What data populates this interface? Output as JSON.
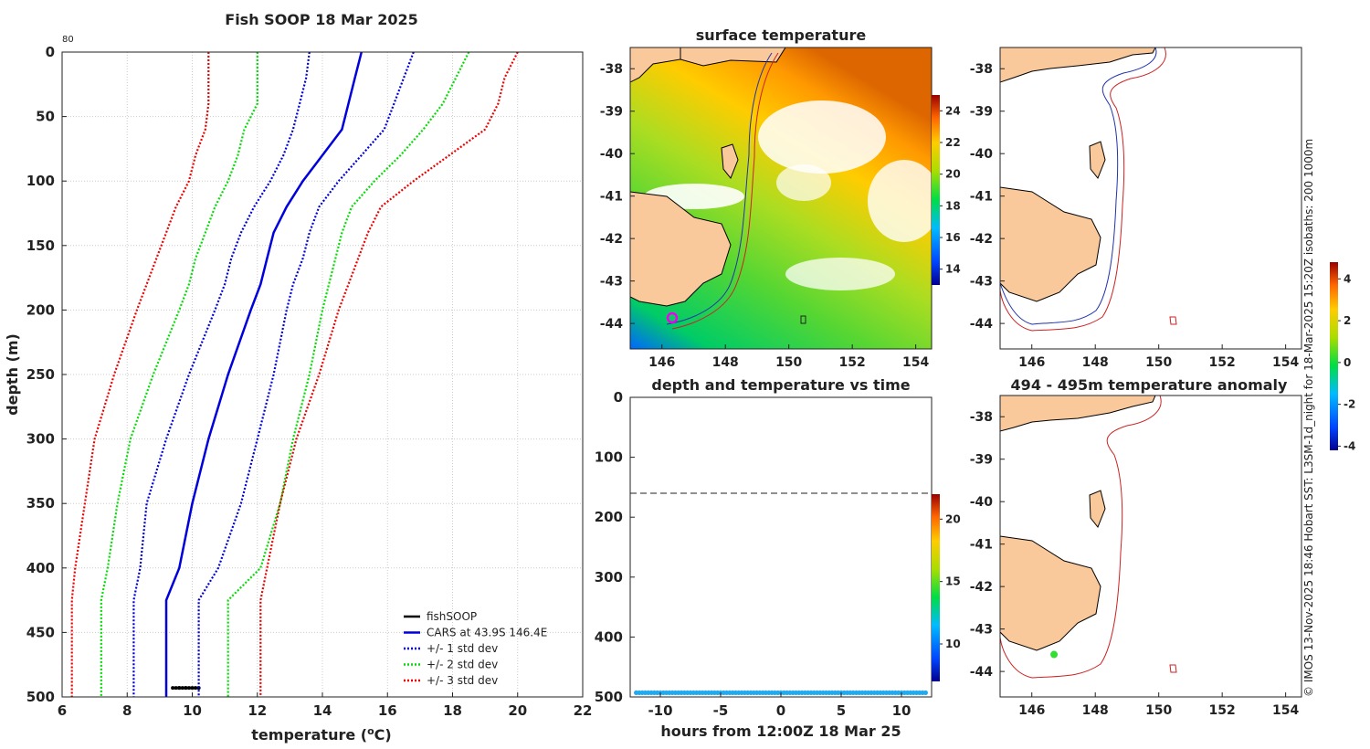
{
  "chart_data": [
    {
      "type": "line",
      "title": "Fish SOOP 18 Mar 2025",
      "corner_label": "80",
      "xlabel": "temperature (",
      "xlabel_sup": "o",
      "xlabel_end": "C)",
      "ylabel": "depth (m)",
      "xlim": [
        6,
        22
      ],
      "ylim": [
        0,
        500
      ],
      "xticks": [
        6,
        8,
        10,
        12,
        14,
        16,
        18,
        20,
        22
      ],
      "yticks": [
        0,
        50,
        100,
        150,
        200,
        250,
        300,
        350,
        400,
        450,
        500
      ],
      "grid": true,
      "legend_position": "bottom-right",
      "depths": [
        0,
        20,
        40,
        60,
        80,
        100,
        120,
        140,
        160,
        180,
        200,
        250,
        300,
        350,
        400,
        425,
        450,
        500
      ],
      "series": [
        {
          "name": "fishSOOP",
          "color": "#000000",
          "style": "solid",
          "depths": [
            493,
            493,
            493,
            493,
            493,
            493,
            493,
            493,
            493,
            493,
            493
          ],
          "values": [
            9.4,
            9.6,
            9.8,
            10.0,
            10.2,
            9.5,
            9.7,
            9.9,
            10.1,
            9.6,
            9.8
          ]
        },
        {
          "name": "CARS at 43.9S 146.4E",
          "color": "#0000dd",
          "style": "solid",
          "values": [
            15.2,
            15.0,
            14.8,
            14.6,
            14.0,
            13.4,
            12.9,
            12.5,
            12.3,
            12.1,
            11.8,
            11.1,
            10.5,
            10.0,
            9.6,
            9.2,
            9.2,
            9.2
          ]
        },
        {
          "name": "+/- 1 std dev",
          "color": "#0000dd",
          "style": "dotted",
          "upper": [
            16.8,
            16.5,
            16.2,
            15.9,
            15.2,
            14.5,
            13.9,
            13.6,
            13.4,
            13.1,
            12.9,
            12.5,
            12.0,
            11.5,
            10.8,
            10.2,
            10.2,
            10.2
          ],
          "lower": [
            13.6,
            13.5,
            13.3,
            13.1,
            12.8,
            12.4,
            11.9,
            11.5,
            11.2,
            11.0,
            10.7,
            9.9,
            9.2,
            8.6,
            8.4,
            8.2,
            8.2,
            8.2
          ]
        },
        {
          "name": "+/- 2 std dev",
          "color": "#00dd00",
          "style": "dotted",
          "upper": [
            18.5,
            18.1,
            17.7,
            17.1,
            16.4,
            15.6,
            14.9,
            14.6,
            14.4,
            14.2,
            14.0,
            13.6,
            13.1,
            12.7,
            12.1,
            11.1,
            11.1,
            11.1
          ],
          "lower": [
            12.0,
            12.0,
            12.0,
            11.6,
            11.4,
            11.1,
            10.7,
            10.4,
            10.1,
            9.9,
            9.6,
            8.8,
            8.1,
            7.7,
            7.4,
            7.2,
            7.2,
            7.2
          ]
        },
        {
          "name": "+/- 3 std dev",
          "color": "#ee0000",
          "style": "dotted",
          "upper": [
            20.0,
            19.6,
            19.4,
            19.0,
            17.9,
            16.8,
            15.8,
            15.4,
            15.1,
            14.8,
            14.5,
            13.9,
            13.2,
            12.7,
            12.3,
            12.1,
            12.1,
            12.1
          ],
          "lower": [
            10.5,
            10.5,
            10.5,
            10.4,
            10.1,
            9.9,
            9.5,
            9.2,
            8.9,
            8.6,
            8.3,
            7.6,
            7.0,
            6.7,
            6.4,
            6.3,
            6.3,
            6.3
          ]
        }
      ]
    },
    {
      "type": "heatmap",
      "title": "surface temperature",
      "xlim": [
        145,
        154.5
      ],
      "ylim": [
        -44.6,
        -37.5
      ],
      "xticks": [
        146,
        148,
        150,
        152,
        154
      ],
      "yticks": [
        -38,
        -39,
        -40,
        -41,
        -42,
        -43,
        -44
      ],
      "colorbar": {
        "range": [
          13,
          25
        ],
        "ticks": [
          14,
          16,
          18,
          20,
          22,
          24
        ]
      }
    },
    {
      "type": "scatter",
      "title": "depth and temperature vs time",
      "xlabel": "hours from 12:00Z 18 Mar 25",
      "xlim": [
        -12.5,
        12.5
      ],
      "ylim": [
        0,
        500
      ],
      "xticks": [
        -10,
        -5,
        0,
        5,
        10
      ],
      "yticks": [
        0,
        100,
        200,
        300,
        400,
        500
      ],
      "reference_line_depth": 160,
      "points": {
        "depth": 493,
        "temperature": 10,
        "hours_from": -12,
        "hours_to": 12
      },
      "colorbar": {
        "range": [
          7,
          22
        ],
        "ticks": [
          10,
          15,
          20
        ]
      }
    },
    {
      "type": "heatmap",
      "title": "",
      "xlim": [
        145,
        154.5
      ],
      "ylim": [
        -44.6,
        -37.5
      ],
      "xticks": [
        146,
        148,
        150,
        152,
        154
      ],
      "yticks": [
        -38,
        -39,
        -40,
        -41,
        -42,
        -43,
        -44
      ]
    },
    {
      "type": "heatmap",
      "title": "494 - 495m temperature anomaly",
      "xlim": [
        145,
        154.5
      ],
      "ylim": [
        -44.6,
        -37.5
      ],
      "xticks": [
        146,
        148,
        150,
        152,
        154
      ],
      "yticks": [
        -38,
        -39,
        -40,
        -41,
        -42,
        -43,
        -44
      ],
      "marker": {
        "lon": 146.7,
        "lat": -43.6,
        "color": "#33dd33"
      },
      "colorbar": {
        "range": [
          -4.2,
          4.8
        ],
        "ticks": [
          -4,
          -2,
          0,
          2,
          4
        ]
      }
    }
  ],
  "credit": "© IMOS 13-Nov-2025 18:46 Hobart SST: L3SM-1d_night for 18-Mar-2025 15:20Z isobaths: 200  1000m",
  "colors": {
    "land": "#f9c89b",
    "coast": "#000000",
    "isobath_200": "#2233aa",
    "isobath_1000": "#cc2222"
  }
}
